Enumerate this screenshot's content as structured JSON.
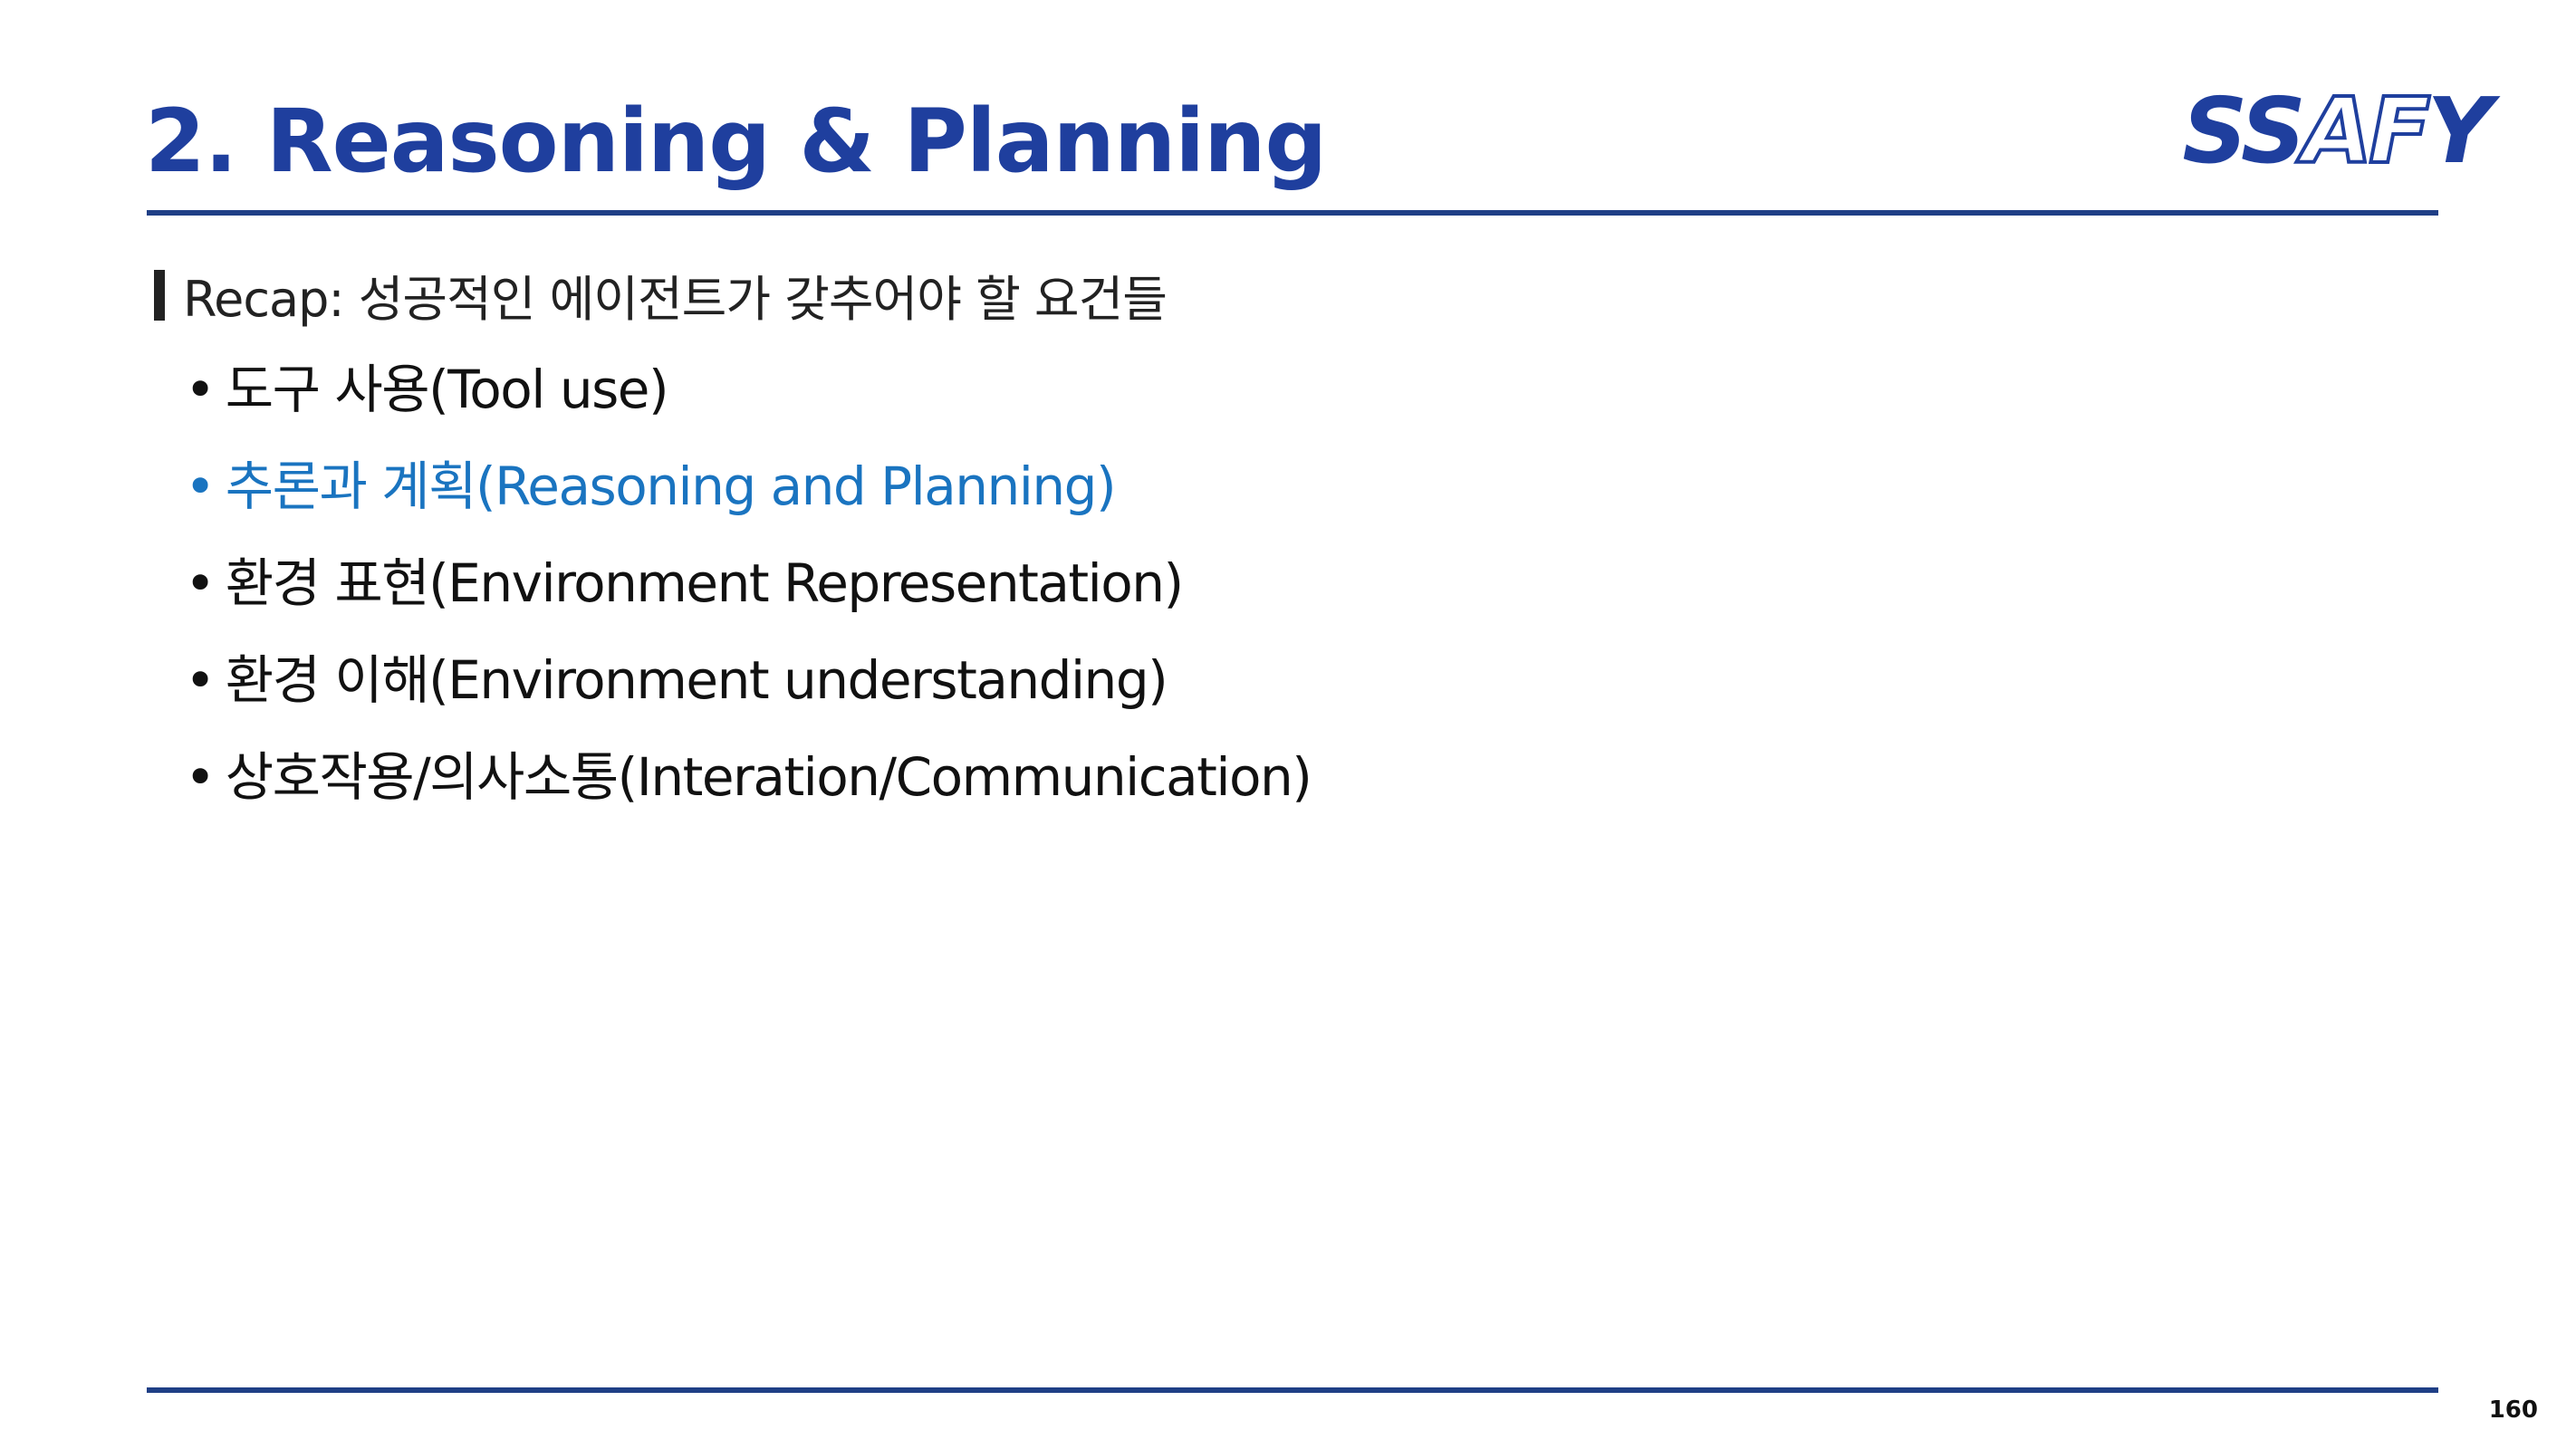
{
  "slide": {
    "title": "2. Reasoning & Planning",
    "logo": {
      "part1": "SS",
      "part2": "AF",
      "part3": "Y"
    },
    "recap": "Recap: 성공적인 에이전트가 갖추어야 할 요건들",
    "bullet_symbol": "•",
    "items": [
      "도구 사용(Tool use)",
      "추론과 계획(Reasoning and Planning)",
      "환경 표현(Environment Representation)",
      "환경 이해(Environment understanding)",
      "상호작용/의사소통(Interation/Communication)"
    ],
    "highlight_index": 1,
    "page_number": "160"
  },
  "colors": {
    "title": "#1f3f9e",
    "highlight": "#1a74c0",
    "text": "#111111",
    "rule": "#1f3f86"
  }
}
